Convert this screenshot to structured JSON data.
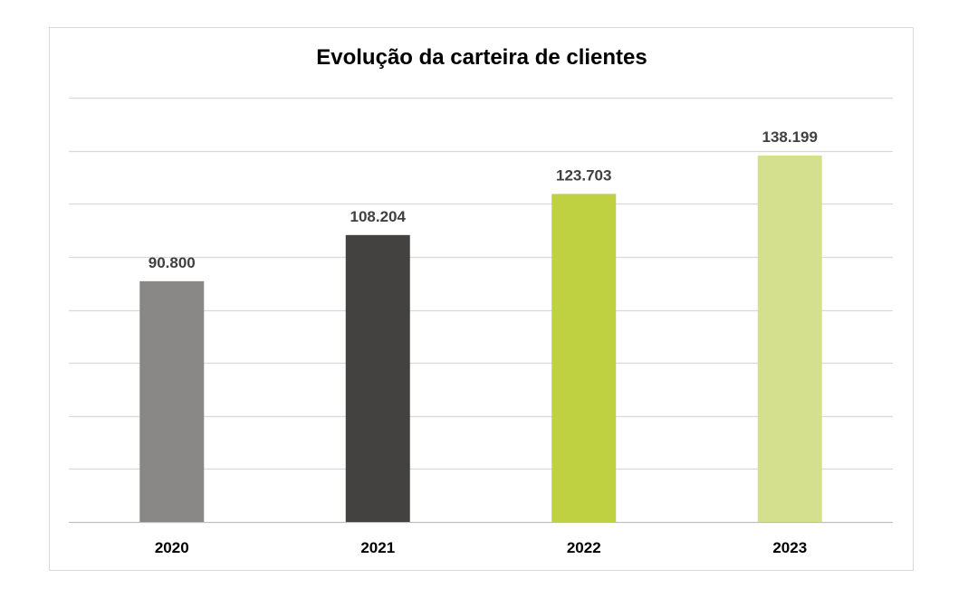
{
  "chart_data": {
    "type": "bar",
    "title": "Evolução da carteira de clientes",
    "categories": [
      "2020",
      "2021",
      "2022",
      "2023"
    ],
    "values": [
      90800,
      108204,
      123703,
      138199
    ],
    "data_labels": [
      "90.800",
      "108.204",
      "123.703",
      "138.199"
    ],
    "bar_colors": [
      "#898886",
      "#434240",
      "#bfd040",
      "#d5e08f"
    ],
    "ylim": [
      0,
      160000
    ],
    "grid_step": 20000,
    "grid": true,
    "legend": "none"
  }
}
